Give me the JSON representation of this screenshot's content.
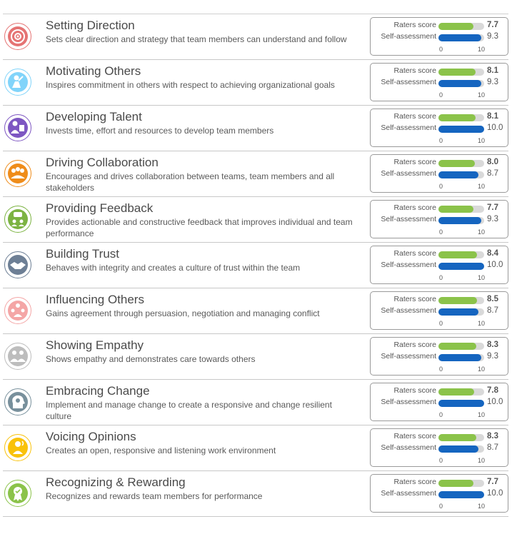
{
  "labels": {
    "raters": "Raters score",
    "self": "Self-assessment",
    "axis_min": "0",
    "axis_max": "10"
  },
  "scale_max": 10,
  "colors": {
    "raters_bar": "#8bc34a",
    "self_bar": "#1565c0",
    "track": "#d9d9d9"
  },
  "competencies": [
    {
      "title": "Setting Direction",
      "desc": "Sets clear direction and strategy that team members can understand and follow",
      "raters": "7.7",
      "self": "9.3",
      "icon": "target-icon",
      "color": "#e57373"
    },
    {
      "title": "Motivating Others",
      "desc": "Inspires commitment in others with respect to achieving organizational goals",
      "raters": "8.1",
      "self": "9.3",
      "icon": "motivating-person-icon",
      "color": "#81d4fa"
    },
    {
      "title": "Developing Talent",
      "desc": "Invests time, effort and resources to develop team members",
      "raters": "8.1",
      "self": "10.0",
      "icon": "teacher-icon",
      "color": "#7e57c2"
    },
    {
      "title": "Driving Collaboration",
      "desc": "Encourages and drives collaboration between teams, team members and all stakeholders",
      "raters": "8.0",
      "self": "8.7",
      "icon": "team-group-icon",
      "color": "#ef8c1a"
    },
    {
      "title": "Providing Feedback",
      "desc": "Provides actionable and constructive feedback that improves individual and team performance",
      "raters": "7.7",
      "self": "9.3",
      "icon": "feedback-chat-icon",
      "color": "#7cb342"
    },
    {
      "title": "Building Trust",
      "desc": "Behaves with integrity and creates a culture of trust within the team",
      "raters": "8.4",
      "self": "10.0",
      "icon": "handshake-icon",
      "color": "#6d7f95"
    },
    {
      "title": "Influencing Others",
      "desc": "Gains agreement through persuasion, negotiation and managing conflict",
      "raters": "8.5",
      "self": "8.7",
      "icon": "influence-people-icon",
      "color": "#f4a6a6"
    },
    {
      "title": "Showing Empathy",
      "desc": "Shows empathy and demonstrates care towards others",
      "raters": "8.3",
      "self": "9.3",
      "icon": "empathy-people-icon",
      "color": "#bdbdbd"
    },
    {
      "title": "Embracing Change",
      "desc": "Implement and manage change to create a responsive and change resilient culture",
      "raters": "7.8",
      "self": "10.0",
      "icon": "head-gear-icon",
      "color": "#78909c"
    },
    {
      "title": "Voicing Opinions",
      "desc": "Creates an open, responsive and listening work environment",
      "raters": "8.3",
      "self": "8.7",
      "icon": "speaking-person-icon",
      "color": "#f9c20a"
    },
    {
      "title": "Recognizing & Rewarding",
      "desc": "Recognizes and rewards team members for performance",
      "raters": "7.7",
      "self": "10.0",
      "icon": "award-ribbon-icon",
      "color": "#8bc34a"
    }
  ]
}
